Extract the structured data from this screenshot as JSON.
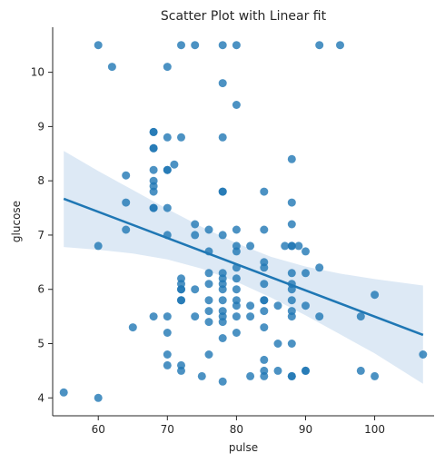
{
  "chart_data": {
    "type": "scatter",
    "title": "Scatter Plot with Linear fit",
    "xlabel": "pulse",
    "ylabel": "glucose",
    "xlim": [
      53.4,
      108.6
    ],
    "ylim": [
      3.67,
      10.83
    ],
    "xticks": [
      60,
      70,
      80,
      90,
      100
    ],
    "yticks": [
      4,
      5,
      6,
      7,
      8,
      9,
      10
    ],
    "grid": false,
    "point_color": "#1f77b4",
    "fit_color": "#1f77b4",
    "band_color": "#c6dbef",
    "fit_line": {
      "x": [
        55,
        107
      ],
      "y": [
        7.67,
        5.16
      ]
    },
    "confidence_band": {
      "x": [
        55,
        60,
        65,
        70,
        75,
        80,
        85,
        90,
        95,
        100,
        107
      ],
      "upper": [
        8.55,
        8.18,
        7.83,
        7.48,
        7.15,
        6.85,
        6.6,
        6.42,
        6.29,
        6.19,
        6.07
      ],
      "lower": [
        6.78,
        6.73,
        6.66,
        6.55,
        6.38,
        6.14,
        5.85,
        5.52,
        5.17,
        4.82,
        4.26
      ]
    },
    "points": [
      [
        55,
        4.1
      ],
      [
        60,
        4.0
      ],
      [
        60,
        6.8
      ],
      [
        60,
        10.5
      ],
      [
        62,
        10.1
      ],
      [
        64,
        8.1
      ],
      [
        64,
        7.6
      ],
      [
        64,
        7.1
      ],
      [
        65,
        5.3
      ],
      [
        68,
        8.9
      ],
      [
        68,
        8.9
      ],
      [
        68,
        8.6
      ],
      [
        68,
        8.6
      ],
      [
        68,
        8.2
      ],
      [
        68,
        8.0
      ],
      [
        68,
        7.9
      ],
      [
        68,
        7.8
      ],
      [
        68,
        7.5
      ],
      [
        68,
        7.5
      ],
      [
        68,
        5.5
      ],
      [
        70,
        10.1
      ],
      [
        70,
        8.8
      ],
      [
        70,
        8.2
      ],
      [
        70,
        8.2
      ],
      [
        70,
        7.5
      ],
      [
        70,
        7.0
      ],
      [
        70,
        5.5
      ],
      [
        70,
        5.2
      ],
      [
        70,
        4.8
      ],
      [
        70,
        4.6
      ],
      [
        71,
        8.3
      ],
      [
        72,
        10.5
      ],
      [
        72,
        8.8
      ],
      [
        72,
        6.2
      ],
      [
        72,
        6.1
      ],
      [
        72,
        6.0
      ],
      [
        72,
        6.0
      ],
      [
        72,
        5.8
      ],
      [
        72,
        5.8
      ],
      [
        72,
        4.6
      ],
      [
        72,
        4.5
      ],
      [
        74,
        10.5
      ],
      [
        74,
        7.2
      ],
      [
        74,
        7.0
      ],
      [
        74,
        6.0
      ],
      [
        74,
        5.5
      ],
      [
        75,
        4.4
      ],
      [
        76,
        7.1
      ],
      [
        76,
        6.7
      ],
      [
        76,
        6.3
      ],
      [
        76,
        6.1
      ],
      [
        76,
        5.8
      ],
      [
        76,
        5.6
      ],
      [
        76,
        5.4
      ],
      [
        76,
        4.8
      ],
      [
        78,
        10.5
      ],
      [
        78,
        9.8
      ],
      [
        78,
        8.8
      ],
      [
        78,
        7.8
      ],
      [
        78,
        7.8
      ],
      [
        78,
        7.0
      ],
      [
        78,
        6.3
      ],
      [
        78,
        6.2
      ],
      [
        78,
        6.1
      ],
      [
        78,
        6.0
      ],
      [
        78,
        5.8
      ],
      [
        78,
        5.6
      ],
      [
        78,
        5.5
      ],
      [
        78,
        5.4
      ],
      [
        78,
        5.1
      ],
      [
        78,
        4.3
      ],
      [
        80,
        10.5
      ],
      [
        80,
        9.4
      ],
      [
        80,
        7.1
      ],
      [
        80,
        6.8
      ],
      [
        80,
        6.7
      ],
      [
        80,
        6.4
      ],
      [
        80,
        6.2
      ],
      [
        80,
        6.0
      ],
      [
        80,
        5.8
      ],
      [
        80,
        5.7
      ],
      [
        80,
        5.5
      ],
      [
        80,
        5.2
      ],
      [
        82,
        6.8
      ],
      [
        82,
        5.7
      ],
      [
        82,
        5.5
      ],
      [
        82,
        4.4
      ],
      [
        84,
        7.8
      ],
      [
        84,
        7.1
      ],
      [
        84,
        6.5
      ],
      [
        84,
        6.4
      ],
      [
        84,
        6.1
      ],
      [
        84,
        5.8
      ],
      [
        84,
        5.8
      ],
      [
        84,
        5.6
      ],
      [
        84,
        5.3
      ],
      [
        84,
        4.7
      ],
      [
        84,
        4.5
      ],
      [
        84,
        4.4
      ],
      [
        86,
        5.7
      ],
      [
        86,
        5.0
      ],
      [
        86,
        4.5
      ],
      [
        87,
        6.8
      ],
      [
        88,
        8.4
      ],
      [
        88,
        7.6
      ],
      [
        88,
        7.2
      ],
      [
        88,
        6.8
      ],
      [
        88,
        6.8
      ],
      [
        88,
        6.3
      ],
      [
        88,
        6.1
      ],
      [
        88,
        6.0
      ],
      [
        88,
        5.8
      ],
      [
        88,
        5.6
      ],
      [
        88,
        5.5
      ],
      [
        88,
        5.0
      ],
      [
        88,
        4.4
      ],
      [
        88,
        4.4
      ],
      [
        89,
        6.8
      ],
      [
        90,
        6.7
      ],
      [
        90,
        6.3
      ],
      [
        90,
        5.7
      ],
      [
        90,
        4.5
      ],
      [
        90,
        4.5
      ],
      [
        92,
        10.5
      ],
      [
        92,
        6.4
      ],
      [
        92,
        5.5
      ],
      [
        95,
        10.5
      ],
      [
        98,
        5.5
      ],
      [
        98,
        4.5
      ],
      [
        100,
        5.9
      ],
      [
        100,
        4.4
      ],
      [
        107,
        4.8
      ]
    ]
  }
}
